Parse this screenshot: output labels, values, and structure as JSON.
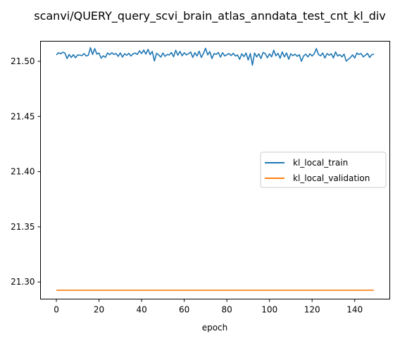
{
  "chart_data": {
    "type": "line",
    "title": "scanvi/QUERY_query_scvi_brain_atlas_anndata_test_cnt_kl_div",
    "xlabel": "epoch",
    "ylabel": "",
    "xlim": [
      -7.45,
      156.45
    ],
    "ylim": [
      21.2845,
      21.5182
    ],
    "xticks": [
      0,
      20,
      40,
      60,
      80,
      100,
      120,
      140
    ],
    "yticks": [
      21.3,
      21.35,
      21.4,
      21.45,
      21.5
    ],
    "ytick_labels": [
      "21.30",
      "21.35",
      "21.40",
      "21.45",
      "21.50"
    ],
    "grid": false,
    "legend": {
      "placement": "center-right"
    },
    "series": [
      {
        "name": "kl_local_train",
        "color": "#1f77b4",
        "x_start": 0,
        "x_step": 1,
        "values": [
          21.5058,
          21.5078,
          21.5068,
          21.5082,
          21.5075,
          21.5025,
          21.5062,
          21.5035,
          21.506,
          21.5032,
          21.5058,
          21.5055,
          21.5052,
          21.507,
          21.5048,
          21.5055,
          21.5123,
          21.5062,
          21.5115,
          21.5065,
          21.5075,
          21.5028,
          21.505,
          21.5035,
          21.5075,
          21.506,
          21.5078,
          21.5062,
          21.507,
          21.5045,
          21.5076,
          21.5038,
          21.5068,
          21.5055,
          21.5072,
          21.5048,
          21.5068,
          21.5075,
          21.5062,
          21.5095,
          21.507,
          21.5102,
          21.5065,
          21.5108,
          21.506,
          21.509,
          21.5003,
          21.5072,
          21.5058,
          21.5038,
          21.5075,
          21.5045,
          21.5062,
          21.5058,
          21.508,
          21.5041,
          21.51,
          21.5055,
          21.509,
          21.505,
          21.5078,
          21.5058,
          21.5068,
          21.5085,
          21.5035,
          21.5078,
          21.5048,
          21.5092,
          21.5035,
          21.507,
          21.5118,
          21.5058,
          21.5088,
          21.5025,
          21.507,
          21.5062,
          21.508,
          21.5038,
          21.5078,
          21.5048,
          21.506,
          21.507,
          21.5052,
          21.5072,
          21.5048,
          21.5058,
          21.5018,
          21.5068,
          21.5042,
          21.5075,
          21.5012,
          21.507,
          21.4965,
          21.5075,
          21.504,
          21.5068,
          21.5025,
          21.508,
          21.507,
          21.5032,
          21.5068,
          21.504,
          21.51,
          21.505,
          21.5072,
          21.5028,
          21.5085,
          21.504,
          21.5076,
          21.5018,
          21.5068,
          21.505,
          21.5065,
          21.5045,
          21.506,
          21.5,
          21.5048,
          21.5065,
          21.504,
          21.5068,
          21.5048,
          21.5068,
          21.5115,
          21.5062,
          21.505,
          21.5075,
          21.503,
          21.507,
          21.5055,
          21.5068,
          21.503,
          21.5085,
          21.5048,
          21.506,
          21.504,
          21.5065,
          21.5002,
          21.5018,
          21.5035,
          21.5058,
          21.503,
          21.5075,
          21.5062,
          21.507,
          21.504,
          21.5055,
          21.5072,
          21.5035,
          21.506,
          21.5065
        ]
      },
      {
        "name": "kl_local_validation",
        "color": "#ff7f0e",
        "x_start": 0,
        "x_step": 1,
        "values": [
          21.2925,
          21.2925,
          21.2925,
          21.2925,
          21.2925,
          21.2925,
          21.2925,
          21.2925,
          21.2925,
          21.2925,
          21.2925,
          21.2925,
          21.2925,
          21.2925,
          21.2925,
          21.2925,
          21.2925,
          21.2925,
          21.2925,
          21.2925,
          21.2925,
          21.2925,
          21.2925,
          21.2925,
          21.2925,
          21.2925,
          21.2925,
          21.2925,
          21.2925,
          21.2925,
          21.2925,
          21.2925,
          21.2925,
          21.2925,
          21.2925,
          21.2925,
          21.2925,
          21.2925,
          21.2925,
          21.2925,
          21.2925,
          21.2925,
          21.2925,
          21.2925,
          21.2925,
          21.2925,
          21.2925,
          21.2925,
          21.2925,
          21.2925,
          21.2925,
          21.2925,
          21.2925,
          21.2925,
          21.2925,
          21.2925,
          21.2925,
          21.2925,
          21.2925,
          21.2925,
          21.2925,
          21.2925,
          21.2925,
          21.2925,
          21.2925,
          21.2925,
          21.2925,
          21.2925,
          21.2925,
          21.2925,
          21.2925,
          21.2925,
          21.2925,
          21.2925,
          21.2925,
          21.2925,
          21.2925,
          21.2925,
          21.2925,
          21.2925,
          21.2925,
          21.2925,
          21.2925,
          21.2925,
          21.2925,
          21.2925,
          21.2925,
          21.2925,
          21.2925,
          21.2925,
          21.2925,
          21.2925,
          21.2925,
          21.2925,
          21.2925,
          21.2925,
          21.2925,
          21.2925,
          21.2925,
          21.2925,
          21.2925,
          21.2925,
          21.2925,
          21.2925,
          21.2925,
          21.2925,
          21.2925,
          21.2925,
          21.2925,
          21.2925,
          21.2925,
          21.2925,
          21.2925,
          21.2925,
          21.2925,
          21.2925,
          21.2925,
          21.2925,
          21.2925,
          21.2925,
          21.2925,
          21.2925,
          21.2925,
          21.2925,
          21.2925,
          21.2925,
          21.2925,
          21.2925,
          21.2925,
          21.2925,
          21.2925,
          21.2925,
          21.2925,
          21.2925,
          21.2925,
          21.2925,
          21.2925,
          21.2925,
          21.2925,
          21.2925,
          21.2925,
          21.2925,
          21.2925,
          21.2925,
          21.2925,
          21.2925,
          21.2925,
          21.2925,
          21.2925,
          21.2925
        ]
      }
    ]
  }
}
